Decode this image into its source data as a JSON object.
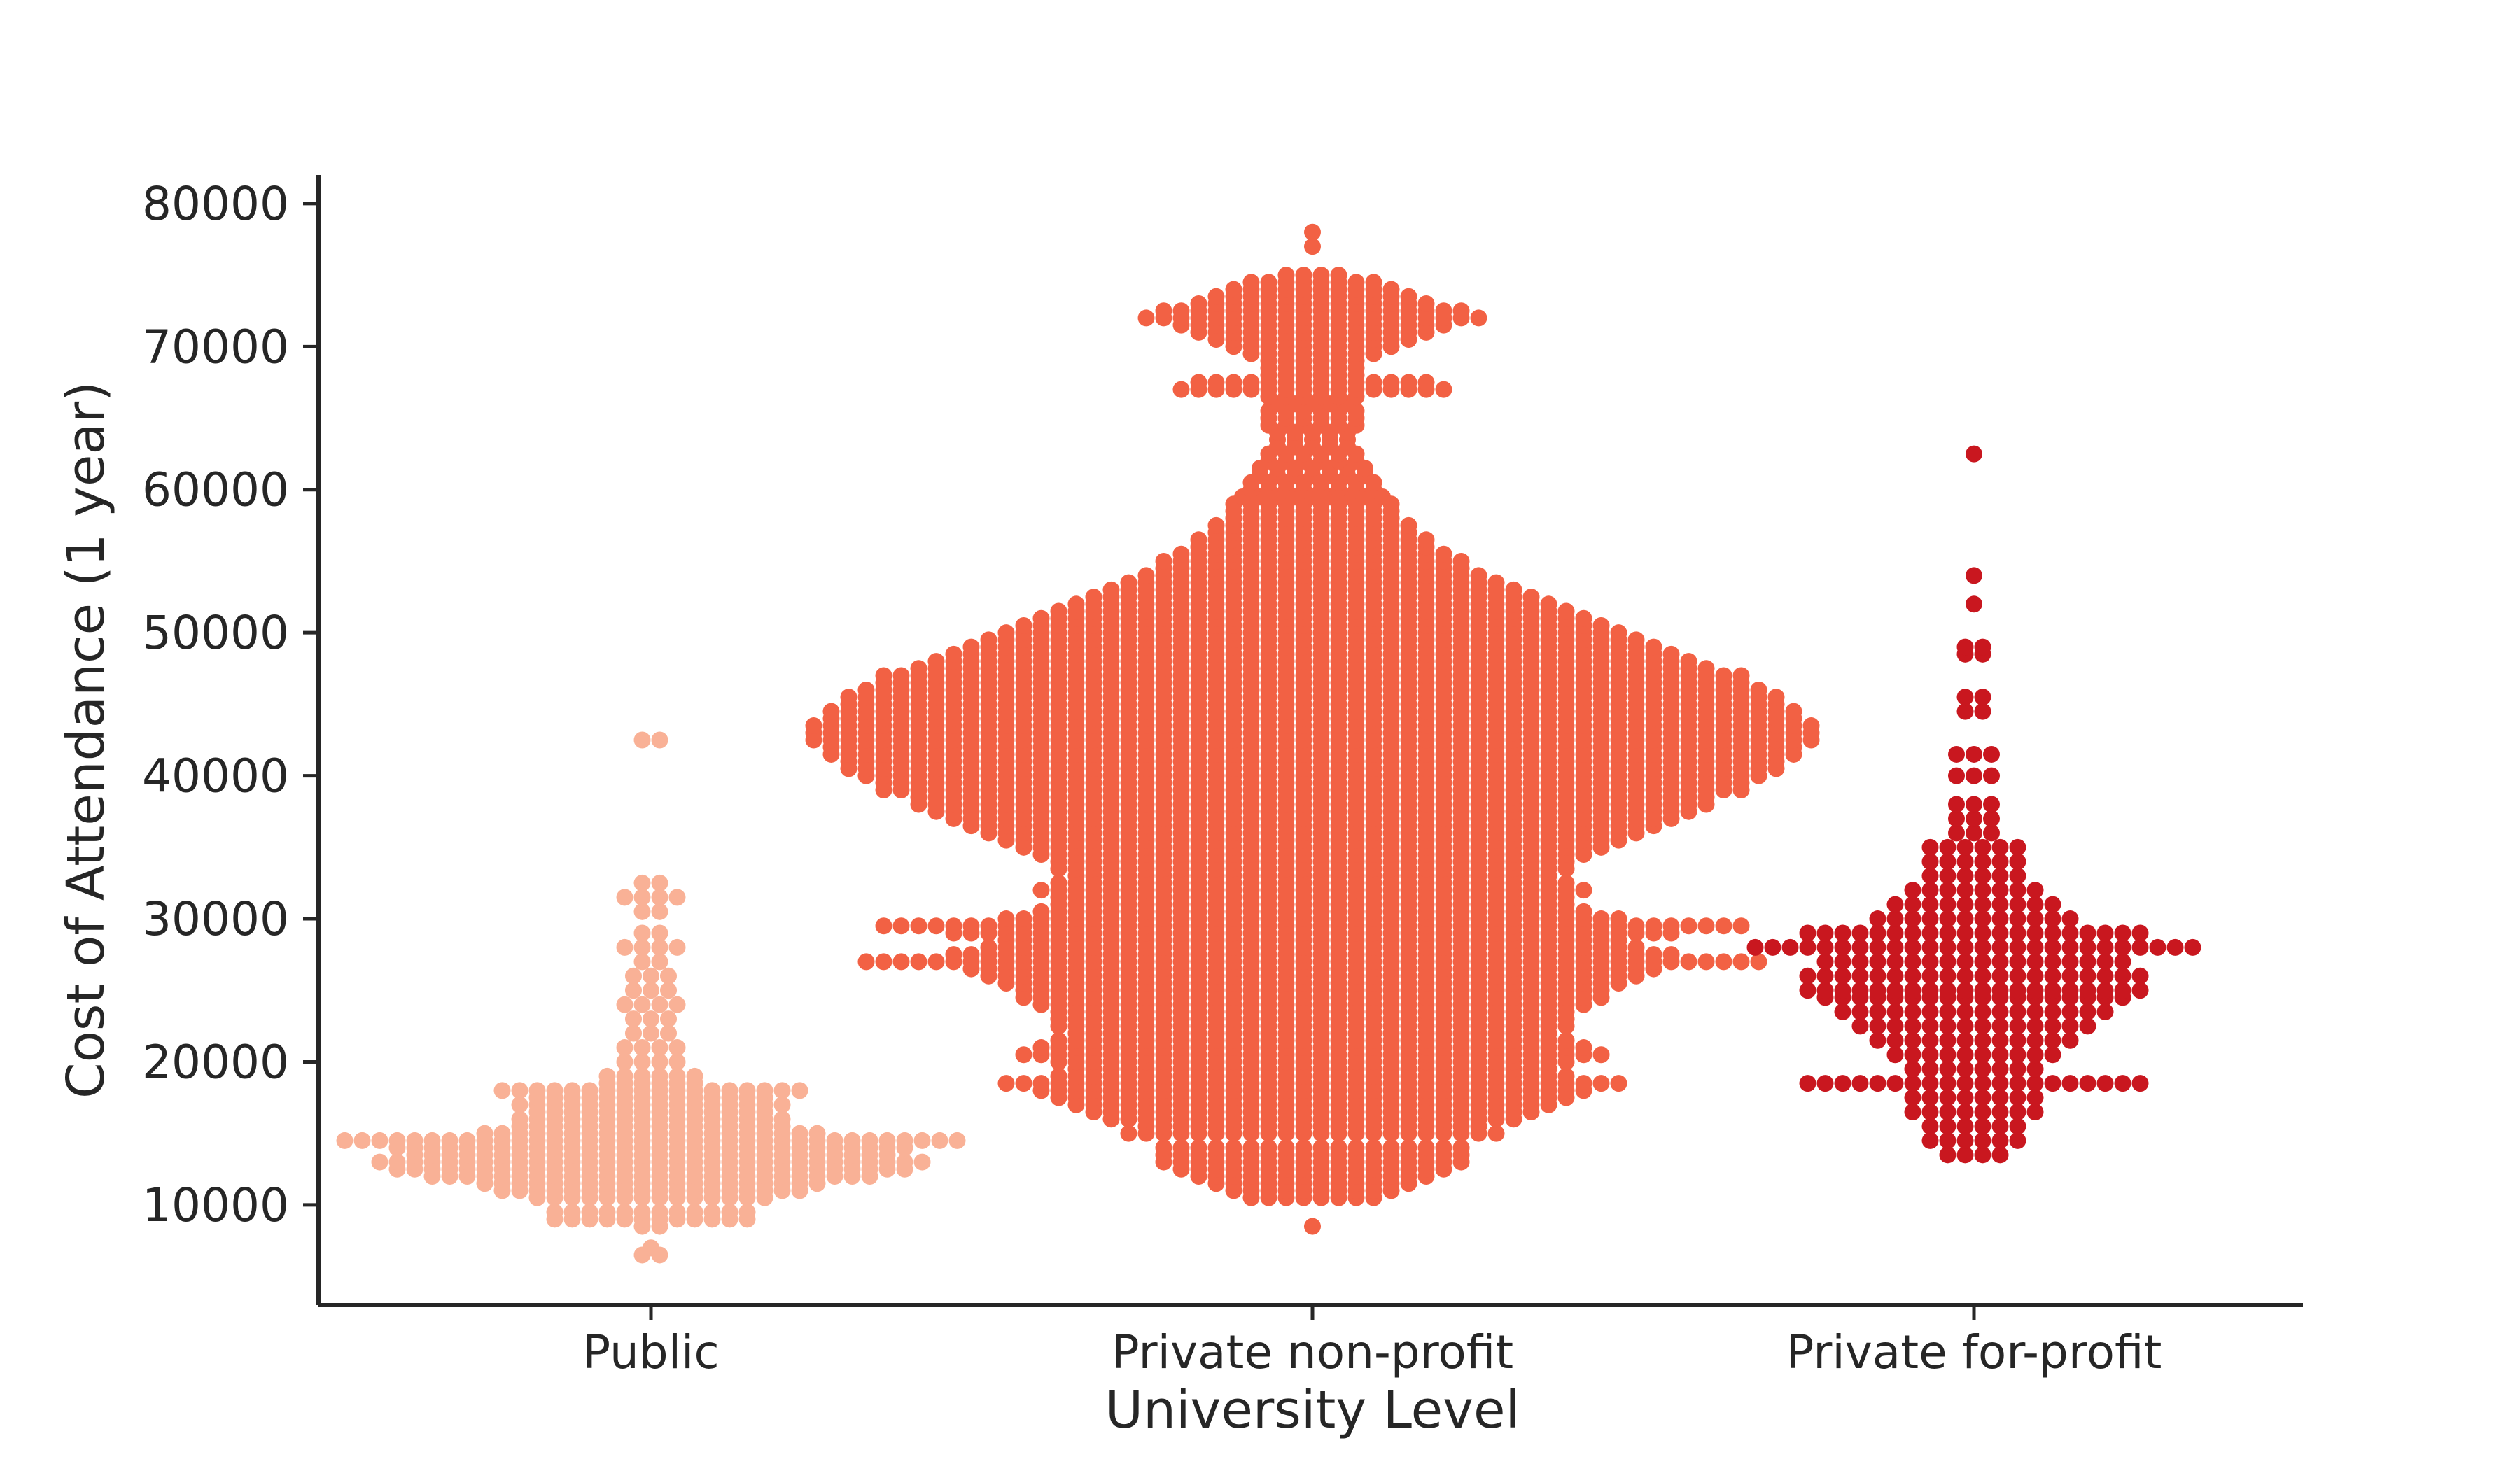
{
  "chart_data": {
    "type": "scatter",
    "subtype": "swarm",
    "title": "",
    "xlabel": "University Level",
    "ylabel": "Cost of Attendance (1 year)",
    "categories": [
      "Public",
      "Private non-profit",
      "Private for-profit"
    ],
    "ylim": [
      3000,
      82000
    ],
    "yticks": [
      10000,
      20000,
      30000,
      40000,
      50000,
      60000,
      70000,
      80000
    ],
    "grid": false,
    "legend": false,
    "colors": {
      "Public": "#f9b196",
      "Private non-profit": "#f26144",
      "Private for-profit": "#c9171f",
      "axis": "#262626"
    },
    "distribution_bins": [
      {
        "category": "Public",
        "bins": [
          {
            "y": 6500,
            "n": 2
          },
          {
            "y": 7000,
            "n": 1
          },
          {
            "y": 8500,
            "n": 2
          },
          {
            "y": 9000,
            "n": 12
          },
          {
            "y": 9500,
            "n": 12
          },
          {
            "y": 10500,
            "n": 14
          },
          {
            "y": 11000,
            "n": 18
          },
          {
            "y": 11500,
            "n": 20
          },
          {
            "y": 12000,
            "n": 26
          },
          {
            "y": 12500,
            "n": 30
          },
          {
            "y": 13000,
            "n": 32
          },
          {
            "y": 13500,
            "n": 28
          },
          {
            "y": 14000,
            "n": 30
          },
          {
            "y": 14500,
            "n": 36
          },
          {
            "y": 15000,
            "n": 20
          },
          {
            "y": 15500,
            "n": 16
          },
          {
            "y": 16000,
            "n": 16
          },
          {
            "y": 16500,
            "n": 14
          },
          {
            "y": 17000,
            "n": 16
          },
          {
            "y": 17500,
            "n": 14
          },
          {
            "y": 18000,
            "n": 18
          },
          {
            "y": 18500,
            "n": 6
          },
          {
            "y": 19000,
            "n": 6
          },
          {
            "y": 20000,
            "n": 4
          },
          {
            "y": 21000,
            "n": 4
          },
          {
            "y": 22000,
            "n": 3
          },
          {
            "y": 23000,
            "n": 3
          },
          {
            "y": 24000,
            "n": 4
          },
          {
            "y": 25000,
            "n": 3
          },
          {
            "y": 26000,
            "n": 3
          },
          {
            "y": 27000,
            "n": 2
          },
          {
            "y": 28000,
            "n": 4
          },
          {
            "y": 29000,
            "n": 2
          },
          {
            "y": 30500,
            "n": 2
          },
          {
            "y": 31500,
            "n": 4
          },
          {
            "y": 32500,
            "n": 2
          },
          {
            "y": 42500,
            "n": 2
          }
        ]
      },
      {
        "category": "Private non-profit",
        "bins": [
          {
            "y": 8500,
            "n": 1
          },
          {
            "y": 10500,
            "n": 8
          },
          {
            "y": 11000,
            "n": 10
          },
          {
            "y": 11500,
            "n": 12
          },
          {
            "y": 12000,
            "n": 14
          },
          {
            "y": 12500,
            "n": 16
          },
          {
            "y": 13000,
            "n": 18
          },
          {
            "y": 13500,
            "n": 18
          },
          {
            "y": 14000,
            "n": 18
          },
          {
            "y": 15000,
            "n": 22
          },
          {
            "y": 15500,
            "n": 20
          },
          {
            "y": 16000,
            "n": 24
          },
          {
            "y": 16500,
            "n": 26
          },
          {
            "y": 17000,
            "n": 28
          },
          {
            "y": 17500,
            "n": 30
          },
          {
            "y": 18000,
            "n": 32
          },
          {
            "y": 18500,
            "n": 36
          },
          {
            "y": 19000,
            "n": 30
          },
          {
            "y": 19500,
            "n": 28
          },
          {
            "y": 20000,
            "n": 30
          },
          {
            "y": 20500,
            "n": 34
          },
          {
            "y": 21000,
            "n": 32
          },
          {
            "y": 21500,
            "n": 30
          },
          {
            "y": 22000,
            "n": 28
          },
          {
            "y": 22500,
            "n": 30
          },
          {
            "y": 23000,
            "n": 30
          },
          {
            "y": 23500,
            "n": 30
          },
          {
            "y": 24000,
            "n": 32
          },
          {
            "y": 24500,
            "n": 34
          },
          {
            "y": 25000,
            "n": 34
          },
          {
            "y": 25500,
            "n": 36
          },
          {
            "y": 26000,
            "n": 38
          },
          {
            "y": 26500,
            "n": 40
          },
          {
            "y": 27000,
            "n": 52
          },
          {
            "y": 27500,
            "n": 42
          },
          {
            "y": 28000,
            "n": 38
          },
          {
            "y": 28500,
            "n": 36
          },
          {
            "y": 29000,
            "n": 42
          },
          {
            "y": 29500,
            "n": 50
          },
          {
            "y": 30000,
            "n": 36
          },
          {
            "y": 30500,
            "n": 32
          },
          {
            "y": 31000,
            "n": 30
          },
          {
            "y": 31500,
            "n": 30
          },
          {
            "y": 32000,
            "n": 32
          },
          {
            "y": 32500,
            "n": 30
          },
          {
            "y": 33000,
            "n": 28
          },
          {
            "y": 33500,
            "n": 30
          },
          {
            "y": 34000,
            "n": 30
          },
          {
            "y": 34500,
            "n": 32
          },
          {
            "y": 35000,
            "n": 34
          },
          {
            "y": 35500,
            "n": 36
          },
          {
            "y": 36000,
            "n": 38
          },
          {
            "y": 36500,
            "n": 40
          },
          {
            "y": 37000,
            "n": 42
          },
          {
            "y": 37500,
            "n": 44
          },
          {
            "y": 38000,
            "n": 46
          },
          {
            "y": 38500,
            "n": 46
          },
          {
            "y": 39000,
            "n": 50
          },
          {
            "y": 39500,
            "n": 50
          },
          {
            "y": 40000,
            "n": 52
          },
          {
            "y": 40500,
            "n": 54
          },
          {
            "y": 41000,
            "n": 54
          },
          {
            "y": 41500,
            "n": 56
          },
          {
            "y": 42000,
            "n": 56
          },
          {
            "y": 42500,
            "n": 58
          },
          {
            "y": 43000,
            "n": 58
          },
          {
            "y": 43500,
            "n": 58
          },
          {
            "y": 44000,
            "n": 56
          },
          {
            "y": 44500,
            "n": 56
          },
          {
            "y": 45000,
            "n": 54
          },
          {
            "y": 45500,
            "n": 54
          },
          {
            "y": 46000,
            "n": 52
          },
          {
            "y": 46500,
            "n": 50
          },
          {
            "y": 47000,
            "n": 50
          },
          {
            "y": 47500,
            "n": 46
          },
          {
            "y": 48000,
            "n": 44
          },
          {
            "y": 48500,
            "n": 42
          },
          {
            "y": 49000,
            "n": 40
          },
          {
            "y": 49500,
            "n": 38
          },
          {
            "y": 50000,
            "n": 36
          },
          {
            "y": 50500,
            "n": 34
          },
          {
            "y": 51000,
            "n": 32
          },
          {
            "y": 51500,
            "n": 30
          },
          {
            "y": 52000,
            "n": 28
          },
          {
            "y": 52500,
            "n": 26
          },
          {
            "y": 53000,
            "n": 24
          },
          {
            "y": 53500,
            "n": 22
          },
          {
            "y": 54000,
            "n": 20
          },
          {
            "y": 54500,
            "n": 18
          },
          {
            "y": 55000,
            "n": 18
          },
          {
            "y": 55500,
            "n": 16
          },
          {
            "y": 56000,
            "n": 14
          },
          {
            "y": 56500,
            "n": 14
          },
          {
            "y": 57000,
            "n": 12
          },
          {
            "y": 57500,
            "n": 12
          },
          {
            "y": 58000,
            "n": 10
          },
          {
            "y": 58500,
            "n": 10
          },
          {
            "y": 59000,
            "n": 10
          },
          {
            "y": 59500,
            "n": 9
          },
          {
            "y": 60000,
            "n": 8
          },
          {
            "y": 60500,
            "n": 8
          },
          {
            "y": 61000,
            "n": 7
          },
          {
            "y": 61500,
            "n": 7
          },
          {
            "y": 62000,
            "n": 6
          },
          {
            "y": 62500,
            "n": 6
          },
          {
            "y": 63000,
            "n": 5
          },
          {
            "y": 63500,
            "n": 5
          },
          {
            "y": 64000,
            "n": 5
          },
          {
            "y": 64500,
            "n": 6
          },
          {
            "y": 65000,
            "n": 6
          },
          {
            "y": 65500,
            "n": 6
          },
          {
            "y": 66000,
            "n": 5
          },
          {
            "y": 66500,
            "n": 6
          },
          {
            "y": 67000,
            "n": 16
          },
          {
            "y": 67500,
            "n": 14
          },
          {
            "y": 68000,
            "n": 6
          },
          {
            "y": 68500,
            "n": 6
          },
          {
            "y": 69000,
            "n": 6
          },
          {
            "y": 69500,
            "n": 8
          },
          {
            "y": 70000,
            "n": 10
          },
          {
            "y": 70500,
            "n": 12
          },
          {
            "y": 71000,
            "n": 14
          },
          {
            "y": 71500,
            "n": 16
          },
          {
            "y": 72000,
            "n": 20
          },
          {
            "y": 72500,
            "n": 18
          },
          {
            "y": 73000,
            "n": 14
          },
          {
            "y": 73500,
            "n": 12
          },
          {
            "y": 74000,
            "n": 10
          },
          {
            "y": 74500,
            "n": 8
          },
          {
            "y": 75000,
            "n": 4
          },
          {
            "y": 77000,
            "n": 1
          },
          {
            "y": 78000,
            "n": 1
          }
        ]
      },
      {
        "category": "Private for-profit",
        "bins": [
          {
            "y": 13500,
            "n": 4
          },
          {
            "y": 14500,
            "n": 6
          },
          {
            "y": 15500,
            "n": 6
          },
          {
            "y": 16500,
            "n": 8
          },
          {
            "y": 17500,
            "n": 8
          },
          {
            "y": 18500,
            "n": 20
          },
          {
            "y": 19500,
            "n": 8
          },
          {
            "y": 20500,
            "n": 10
          },
          {
            "y": 21500,
            "n": 12
          },
          {
            "y": 22500,
            "n": 14
          },
          {
            "y": 23500,
            "n": 16
          },
          {
            "y": 24500,
            "n": 18
          },
          {
            "y": 25000,
            "n": 20
          },
          {
            "y": 26000,
            "n": 20
          },
          {
            "y": 27000,
            "n": 18
          },
          {
            "y": 28000,
            "n": 26
          },
          {
            "y": 29000,
            "n": 20
          },
          {
            "y": 30000,
            "n": 12
          },
          {
            "y": 31000,
            "n": 10
          },
          {
            "y": 32000,
            "n": 8
          },
          {
            "y": 33000,
            "n": 6
          },
          {
            "y": 34000,
            "n": 6
          },
          {
            "y": 35000,
            "n": 6
          },
          {
            "y": 36000,
            "n": 3
          },
          {
            "y": 37000,
            "n": 3
          },
          {
            "y": 38000,
            "n": 3
          },
          {
            "y": 40000,
            "n": 3
          },
          {
            "y": 41500,
            "n": 3
          },
          {
            "y": 44500,
            "n": 2
          },
          {
            "y": 45500,
            "n": 2
          },
          {
            "y": 48500,
            "n": 2
          },
          {
            "y": 49000,
            "n": 2
          },
          {
            "y": 52000,
            "n": 1
          },
          {
            "y": 54000,
            "n": 1
          },
          {
            "y": 62500,
            "n": 1
          }
        ]
      }
    ]
  }
}
